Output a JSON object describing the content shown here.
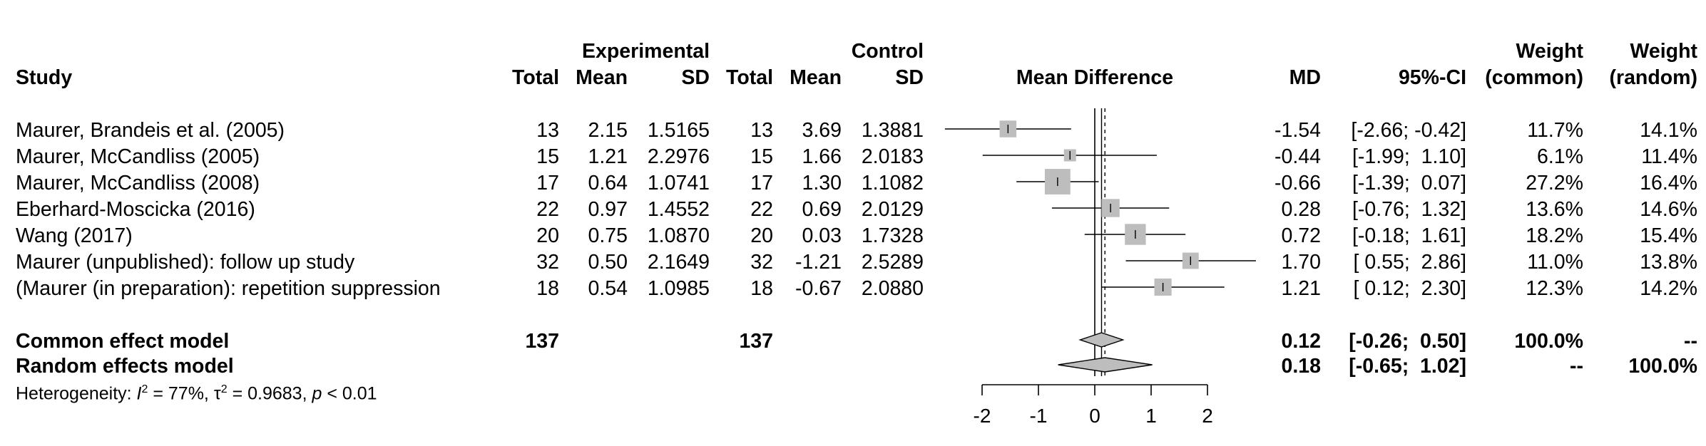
{
  "headers": {
    "group_experimental": "Experimental",
    "group_control": "Control",
    "study": "Study",
    "total": "Total",
    "mean": "Mean",
    "sd": "SD",
    "mean_difference": "Mean Difference",
    "md": "MD",
    "ci": "95%-CI",
    "weight": "Weight",
    "common_paren": "(common)",
    "random_paren": "(random)"
  },
  "studies": [
    {
      "name": "Maurer, Brandeis et al. (2005)",
      "e_total": "13",
      "e_mean": "2.15",
      "e_sd": "1.5165",
      "c_total": "13",
      "c_mean": "3.69",
      "c_sd": "1.3881",
      "md": "-1.54",
      "ci": "[-2.66; -0.42]",
      "w_common": "11.7%",
      "w_random": "14.1%"
    },
    {
      "name": "Maurer, McCandliss (2005)",
      "e_total": "15",
      "e_mean": "1.21",
      "e_sd": "2.2976",
      "c_total": "15",
      "c_mean": "1.66",
      "c_sd": "2.0183",
      "md": "-0.44",
      "ci": "[-1.99;  1.10]",
      "w_common": "6.1%",
      "w_random": "11.4%"
    },
    {
      "name": "Maurer, McCandliss (2008)",
      "e_total": "17",
      "e_mean": "0.64",
      "e_sd": "1.0741",
      "c_total": "17",
      "c_mean": "1.30",
      "c_sd": "1.1082",
      "md": "-0.66",
      "ci": "[-1.39;  0.07]",
      "w_common": "27.2%",
      "w_random": "16.4%"
    },
    {
      "name": "Eberhard-Moscicka (2016)",
      "e_total": "22",
      "e_mean": "0.97",
      "e_sd": "1.4552",
      "c_total": "22",
      "c_mean": "0.69",
      "c_sd": "2.0129",
      "md": "0.28",
      "ci": "[-0.76;  1.32]",
      "w_common": "13.6%",
      "w_random": "14.6%"
    },
    {
      "name": "Wang (2017)",
      "e_total": "20",
      "e_mean": "0.75",
      "e_sd": "1.0870",
      "c_total": "20",
      "c_mean": "0.03",
      "c_sd": "1.7328",
      "md": "0.72",
      "ci": "[-0.18;  1.61]",
      "w_common": "18.2%",
      "w_random": "15.4%"
    },
    {
      "name": "Maurer (unpublished): follow up study",
      "e_total": "32",
      "e_mean": "0.50",
      "e_sd": "2.1649",
      "c_total": "32",
      "c_mean": "-1.21",
      "c_sd": "2.5289",
      "md": "1.70",
      "ci": "[ 0.55;  2.86]",
      "w_common": "11.0%",
      "w_random": "13.8%"
    },
    {
      "name": "(Maurer (in preparation): repetition suppression",
      "e_total": "18",
      "e_mean": "0.54",
      "e_sd": "1.0985",
      "c_total": "18",
      "c_mean": "-0.67",
      "c_sd": "2.0880",
      "md": "1.21",
      "ci": "[ 0.12;  2.30]",
      "w_common": "12.3%",
      "w_random": "14.2%"
    }
  ],
  "summary": [
    {
      "name": "Common effect model",
      "e_total": "137",
      "c_total": "137",
      "md": "0.12",
      "ci": "[-0.26;  0.50]",
      "w_common": "100.0%",
      "w_random": "--"
    },
    {
      "name": "Random effects model",
      "e_total": "",
      "c_total": "",
      "md": "0.18",
      "ci": "[-0.65;  1.02]",
      "w_common": "--",
      "w_random": "100.0%"
    }
  ],
  "heterogeneity": {
    "prefix": "Heterogeneity: ",
    "i2_symbol": "I",
    "i2_value": " = 77%, ",
    "tau_symbol": "τ",
    "tau_value": " = 0.9683, ",
    "p_symbol": "p",
    "p_value": " < 0.01"
  },
  "chart_data": {
    "type": "forest",
    "xlim": [
      -2.5,
      2.8
    ],
    "xticks": [
      -2,
      -1,
      0,
      1,
      2
    ],
    "xtick_labels": [
      "-2",
      "-1",
      "0",
      "1",
      "2"
    ],
    "null_line": 0,
    "colors": {
      "square": "#bdbdbd",
      "diamond": "#bdbdbd",
      "line": "#000000"
    },
    "studies": [
      {
        "md": -1.54,
        "lower": -2.66,
        "upper": -0.42,
        "weight": 11.7
      },
      {
        "md": -0.44,
        "lower": -1.99,
        "upper": 1.1,
        "weight": 6.1
      },
      {
        "md": -0.66,
        "lower": -1.39,
        "upper": 0.07,
        "weight": 27.2
      },
      {
        "md": 0.28,
        "lower": -0.76,
        "upper": 1.32,
        "weight": 13.6
      },
      {
        "md": 0.72,
        "lower": -0.18,
        "upper": 1.61,
        "weight": 18.2
      },
      {
        "md": 1.7,
        "lower": 0.55,
        "upper": 2.86,
        "weight": 11.0
      },
      {
        "md": 1.21,
        "lower": 0.12,
        "upper": 2.3,
        "weight": 12.3
      }
    ],
    "common": {
      "md": 0.12,
      "lower": -0.26,
      "upper": 0.5
    },
    "random": {
      "md": 0.18,
      "lower": -0.65,
      "upper": 1.02
    }
  }
}
